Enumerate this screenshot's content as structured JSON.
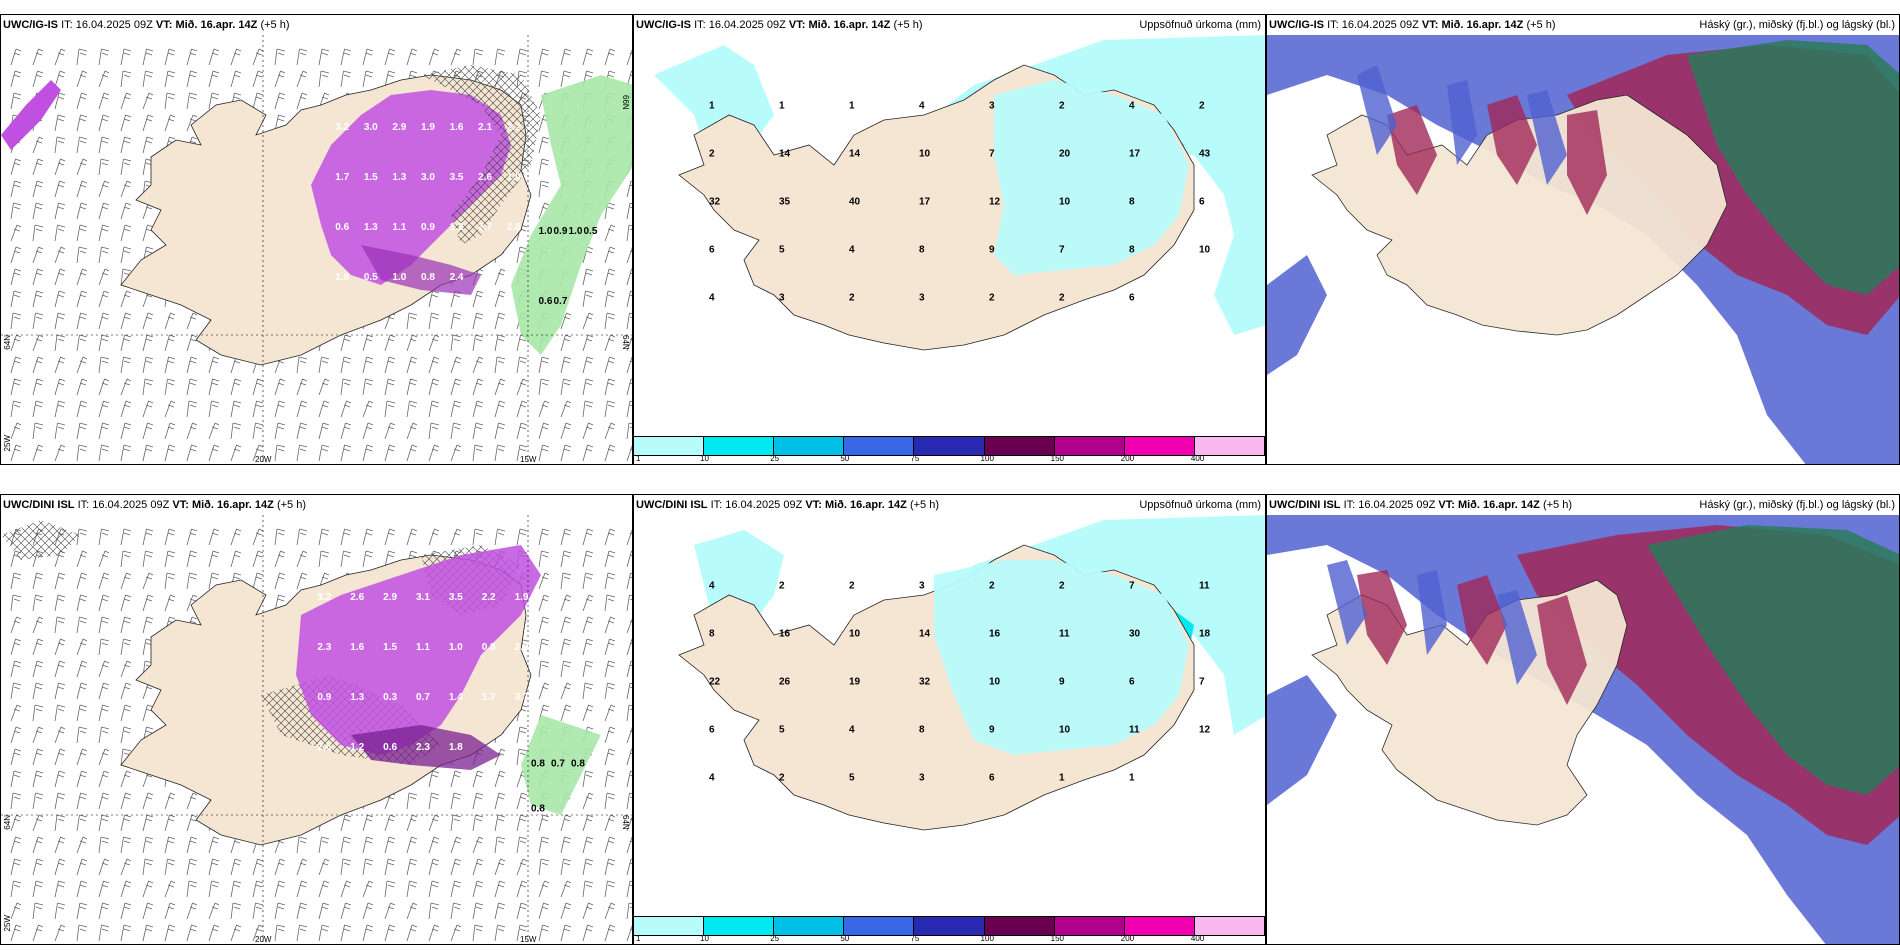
{
  "rows": [
    {
      "model": "UWC/IG-IS",
      "it_label": "IT:",
      "it_value": "16.04.2025 09Z",
      "vt_label": "VT:",
      "vt_value": "Mið. 16.apr. 14Z",
      "lead": "(+5 h)",
      "left_labels": [
        "3.2",
        "3.0",
        "2.9",
        "1.9",
        "1.6",
        "2.1",
        "2.2",
        "1.7",
        "1.5",
        "1.3",
        "3.0",
        "3.5",
        "2.6",
        "1.0",
        "0.6",
        "1.3",
        "1.1",
        "0.9",
        "1.2",
        "2.7",
        "2.8",
        "1.8",
        "0.5",
        "1.0",
        "0.8",
        "2.4"
      ],
      "right_labels": [
        "1.0",
        "0.9",
        "1.0",
        "0.5",
        "0.6",
        "0.7"
      ],
      "precip_values": [
        "1",
        "1",
        "1",
        "4",
        "3",
        "2",
        "4",
        "2",
        "2",
        "14",
        "14",
        "10",
        "7",
        "20",
        "17",
        "43",
        "32",
        "35",
        "40",
        "17",
        "12",
        "10",
        "8",
        "6",
        "6",
        "5",
        "4",
        "8",
        "9",
        "7",
        "8",
        "10",
        "4",
        "3",
        "2",
        "3",
        "2",
        "2",
        "6"
      ],
      "lon_labels": [
        "20W",
        "15W"
      ],
      "lat_labels": [
        "64N",
        "66N",
        "25W"
      ]
    },
    {
      "model": "UWC/DINI ISL",
      "it_label": "IT:",
      "it_value": "16.04.2025 09Z",
      "vt_label": "VT:",
      "vt_value": "Mið. 16.apr. 14Z",
      "lead": "(+5 h)",
      "left_labels": [
        "3.2",
        "2.6",
        "2.9",
        "3.1",
        "3.5",
        "2.2",
        "1.9",
        "2.3",
        "1.6",
        "1.5",
        "1.1",
        "1.0",
        "0.8",
        "2.9",
        "0.9",
        "1.3",
        "0.3",
        "0.7",
        "1.4",
        "1.7",
        "3.7",
        "2.6",
        "1.2",
        "0.6",
        "2.3",
        "1.8"
      ],
      "right_labels": [
        "0.8",
        "0.7",
        "0.8",
        "0.8"
      ],
      "precip_values": [
        "4",
        "2",
        "2",
        "3",
        "2",
        "2",
        "7",
        "11",
        "8",
        "16",
        "10",
        "14",
        "16",
        "11",
        "30",
        "18",
        "22",
        "26",
        "19",
        "32",
        "10",
        "9",
        "6",
        "7",
        "6",
        "5",
        "4",
        "8",
        "9",
        "10",
        "11",
        "12",
        "4",
        "2",
        "5",
        "3",
        "6",
        "1",
        "1"
      ],
      "lon_labels": [
        "20W",
        "15W"
      ],
      "lat_labels": [
        "64N",
        "66N",
        "25W"
      ]
    }
  ],
  "precip_title": "Uppsöfnuð úrkoma (mm)",
  "cloud_title": "Háský (gr.), miðský (fj.bl.) og lágský (bl.)",
  "colorbar": {
    "ticks": [
      "1",
      "10",
      "25",
      "50",
      "75",
      "100",
      "150",
      "200",
      "400"
    ],
    "colors": [
      "#b8fbfb",
      "#00e8f0",
      "#00c0e8",
      "#3868e8",
      "#2828b0",
      "#6a0050",
      "#b0008c",
      "#f000b0",
      "#f8b8f0"
    ]
  },
  "colors": {
    "land": "#f5e6d3",
    "cyan": "#b8fbfb",
    "magenta": "#c050e0",
    "green": "#a8e8a8",
    "cloud_blue": "#5060d0",
    "cloud_red": "#a02858",
    "cloud_green": "#2a7a5a"
  }
}
